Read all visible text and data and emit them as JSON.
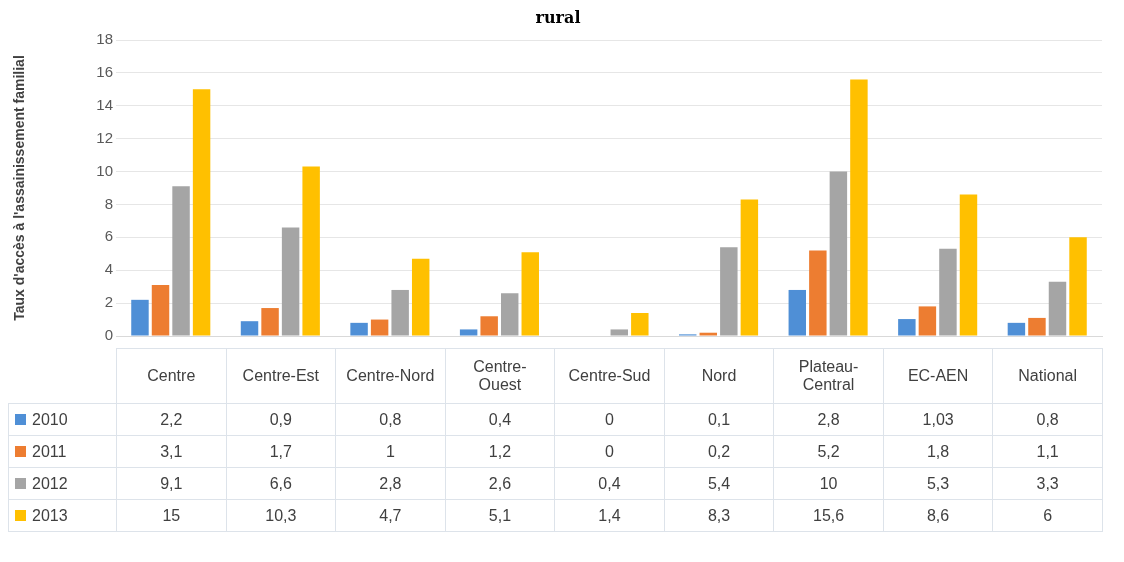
{
  "chart_data": {
    "type": "bar",
    "title": "rural",
    "ylabel": "Taux d'accès à l'assainissement familial",
    "categories": [
      "Centre",
      "Centre-Est",
      "Centre-Nord",
      "Centre-Ouest",
      "Centre-Sud",
      "Nord",
      "Plateau-Central",
      "EC-AEN",
      "National"
    ],
    "series": [
      {
        "name": "2010",
        "color": "#4f8fd6",
        "values": [
          2.2,
          0.9,
          0.8,
          0.4,
          0,
          0.1,
          2.8,
          1.03,
          0.8
        ],
        "value_labels": [
          "2,2",
          "0,9",
          "0,8",
          "0,4",
          "0",
          "0,1",
          "2,8",
          "1,03",
          "0,8"
        ]
      },
      {
        "name": "2011",
        "color": "#ed7d31",
        "values": [
          3.1,
          1.7,
          1,
          1.2,
          0,
          0.2,
          5.2,
          1.8,
          1.1
        ],
        "value_labels": [
          "3,1",
          "1,7",
          "1",
          "1,2",
          "0",
          "0,2",
          "5,2",
          "1,8",
          "1,1"
        ]
      },
      {
        "name": "2012",
        "color": "#a5a5a5",
        "values": [
          9.1,
          6.6,
          2.8,
          2.6,
          0.4,
          5.4,
          10,
          5.3,
          3.3
        ],
        "value_labels": [
          "9,1",
          "6,6",
          "2,8",
          "2,6",
          "0,4",
          "5,4",
          "10",
          "5,3",
          "3,3"
        ]
      },
      {
        "name": "2013",
        "color": "#ffc000",
        "values": [
          15,
          10.3,
          4.7,
          5.1,
          1.4,
          8.3,
          15.6,
          8.6,
          6
        ],
        "value_labels": [
          "15",
          "10,3",
          "4,7",
          "5,1",
          "1,4",
          "8,3",
          "15,6",
          "8,6",
          "6"
        ]
      }
    ],
    "ylim": [
      0,
      18
    ],
    "yticks": [
      0,
      2,
      4,
      6,
      8,
      10,
      12,
      14,
      16,
      18
    ],
    "grid": "y",
    "legend": "bottom"
  }
}
